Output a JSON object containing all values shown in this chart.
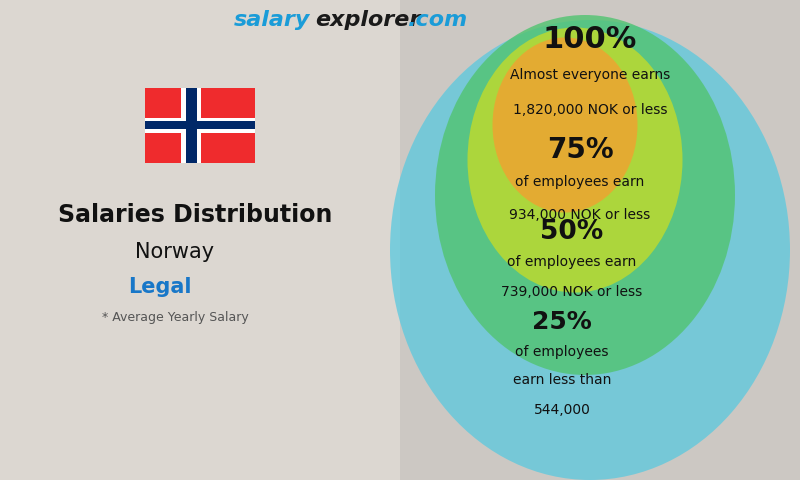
{
  "website_salary": "salary",
  "website_rest": "explorer",
  "website_dot": ".com",
  "main_title": "Salaries Distribution",
  "country": "Norway",
  "field": "Legal",
  "note": "* Average Yearly Salary",
  "labels_pct": [
    "100%",
    "75%",
    "50%",
    "25%"
  ],
  "labels_line1": [
    "Almost everyone earns",
    "of employees earn",
    "of employees earn",
    "of employees"
  ],
  "labels_line2": [
    "1,820,000 NOK or less",
    "934,000 NOK or less",
    "739,000 NOK or less",
    "earn less than"
  ],
  "labels_line3": [
    "",
    "",
    "",
    "544,000"
  ],
  "ellipse_colors": [
    "#55c8e0",
    "#52c472",
    "#b8d932",
    "#e8a832"
  ],
  "ellipse_alphas": [
    0.72,
    0.82,
    0.88,
    0.92
  ],
  "website_salary_color": "#1a9cd8",
  "website_rest_color": "#1a1a1a",
  "website_dot_color": "#1a9cd8",
  "field_color": "#1877c8",
  "flag_red": "#ef2b2d",
  "flag_blue": "#002868",
  "flag_white": "#ffffff",
  "bg_left": "#e8e4e0",
  "bg_right": "#d8d4d0"
}
